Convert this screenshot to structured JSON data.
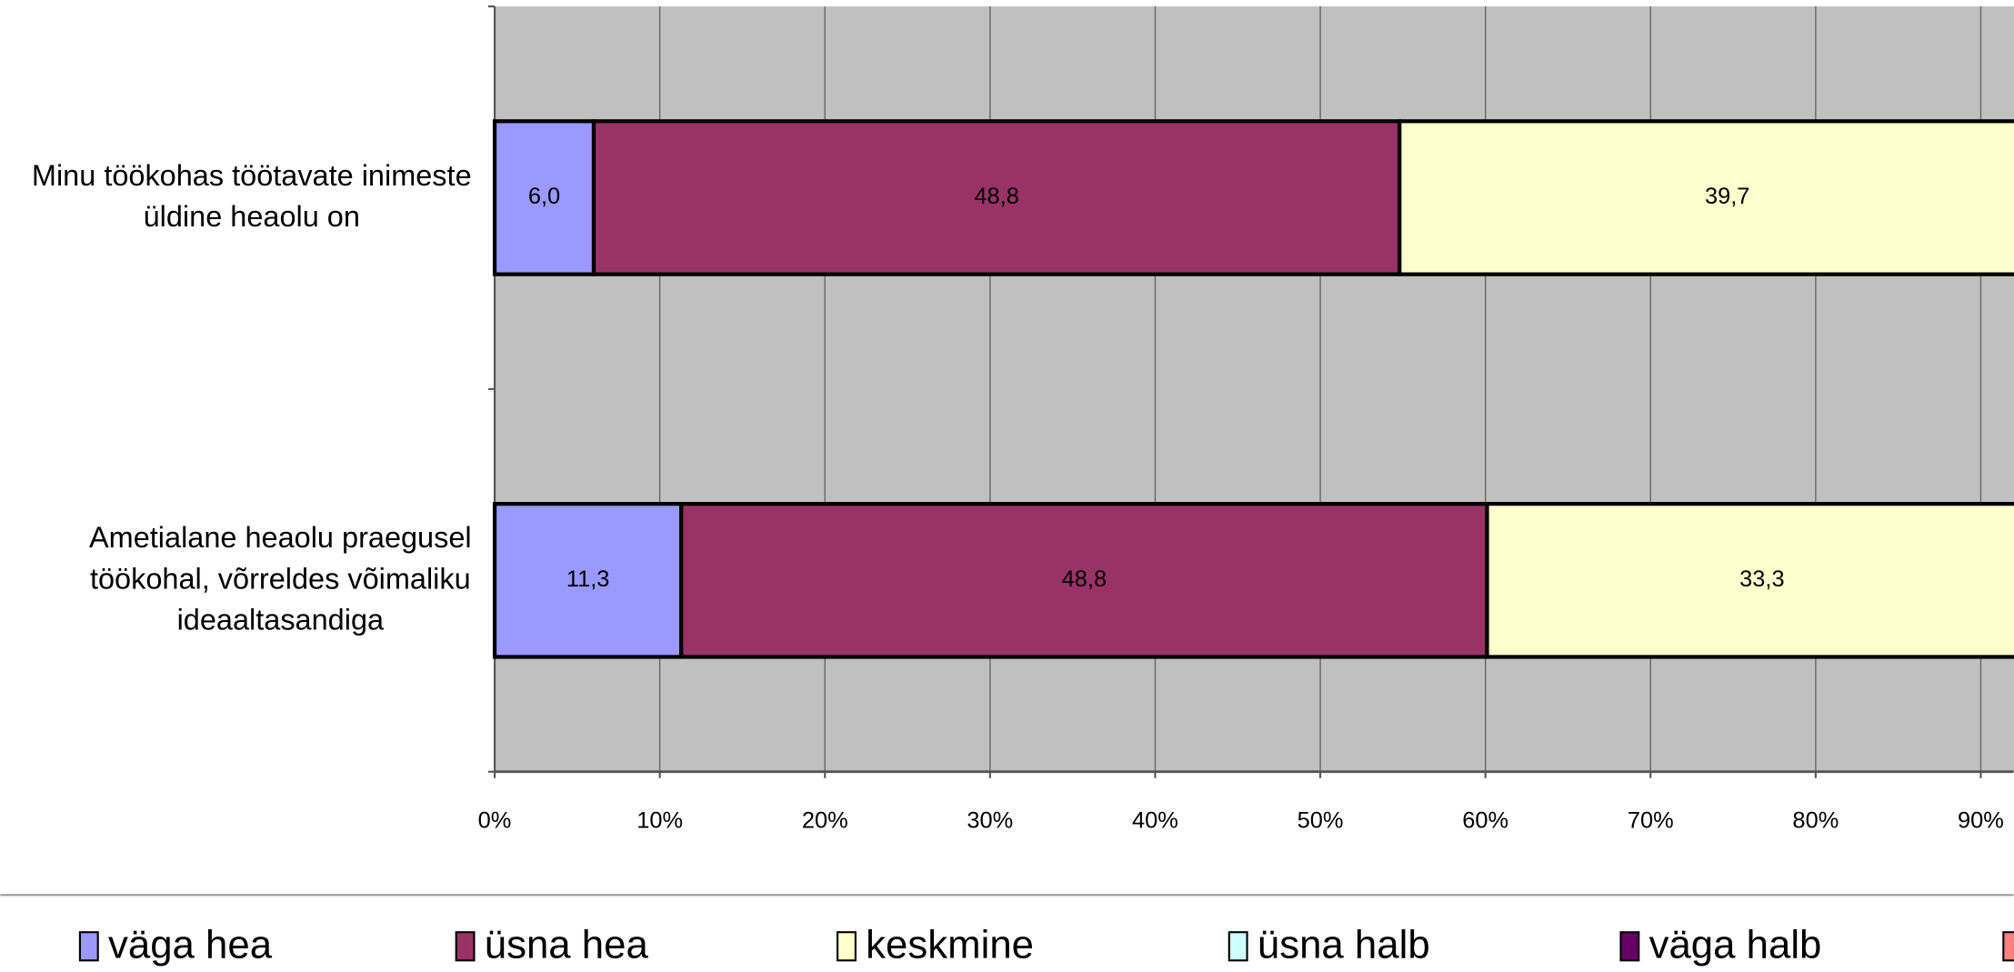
{
  "chart_data": {
    "type": "stacked_bar_horizontal",
    "categories": [
      "Minu töökohas töötavate inimeste üldine heaolu on",
      "Ametialane heaolu praegusel töökohal, võrreldes võimaliku ideaaltasandiga"
    ],
    "series": [
      {
        "name": "väga hea",
        "color": "#9999ff",
        "values": [
          6.0,
          11.3
        ],
        "value_labels": [
          "6,0",
          "11,3"
        ]
      },
      {
        "name": "üsna hea",
        "color": "#993366",
        "values": [
          48.8,
          48.8
        ],
        "value_labels": [
          "48,8",
          "48,8"
        ]
      },
      {
        "name": "keskmine",
        "color": "#ffffcc",
        "values": [
          39.7,
          33.3
        ],
        "value_labels": [
          "39,7",
          "33,3"
        ]
      },
      {
        "name": "üsna halb",
        "color": "#ccffff",
        "values": [
          null,
          null
        ],
        "value_labels": [
          null,
          null
        ]
      },
      {
        "name": "väga halb",
        "color": "#660066",
        "values": [
          null,
          null
        ],
        "value_labels": [
          null,
          null
        ]
      }
    ],
    "xlim": [
      0,
      100
    ],
    "xticks": [
      {
        "value": 0,
        "label": "0%"
      },
      {
        "value": 10,
        "label": "10%"
      },
      {
        "value": 20,
        "label": "20%"
      },
      {
        "value": 30,
        "label": "30%"
      },
      {
        "value": 40,
        "label": "40%"
      },
      {
        "value": 50,
        "label": "50%"
      },
      {
        "value": 60,
        "label": "60%"
      },
      {
        "value": 70,
        "label": "70%"
      },
      {
        "value": 80,
        "label": "80%"
      },
      {
        "value": 90,
        "label": "90%"
      }
    ],
    "grid": true,
    "legend": "bottom"
  }
}
